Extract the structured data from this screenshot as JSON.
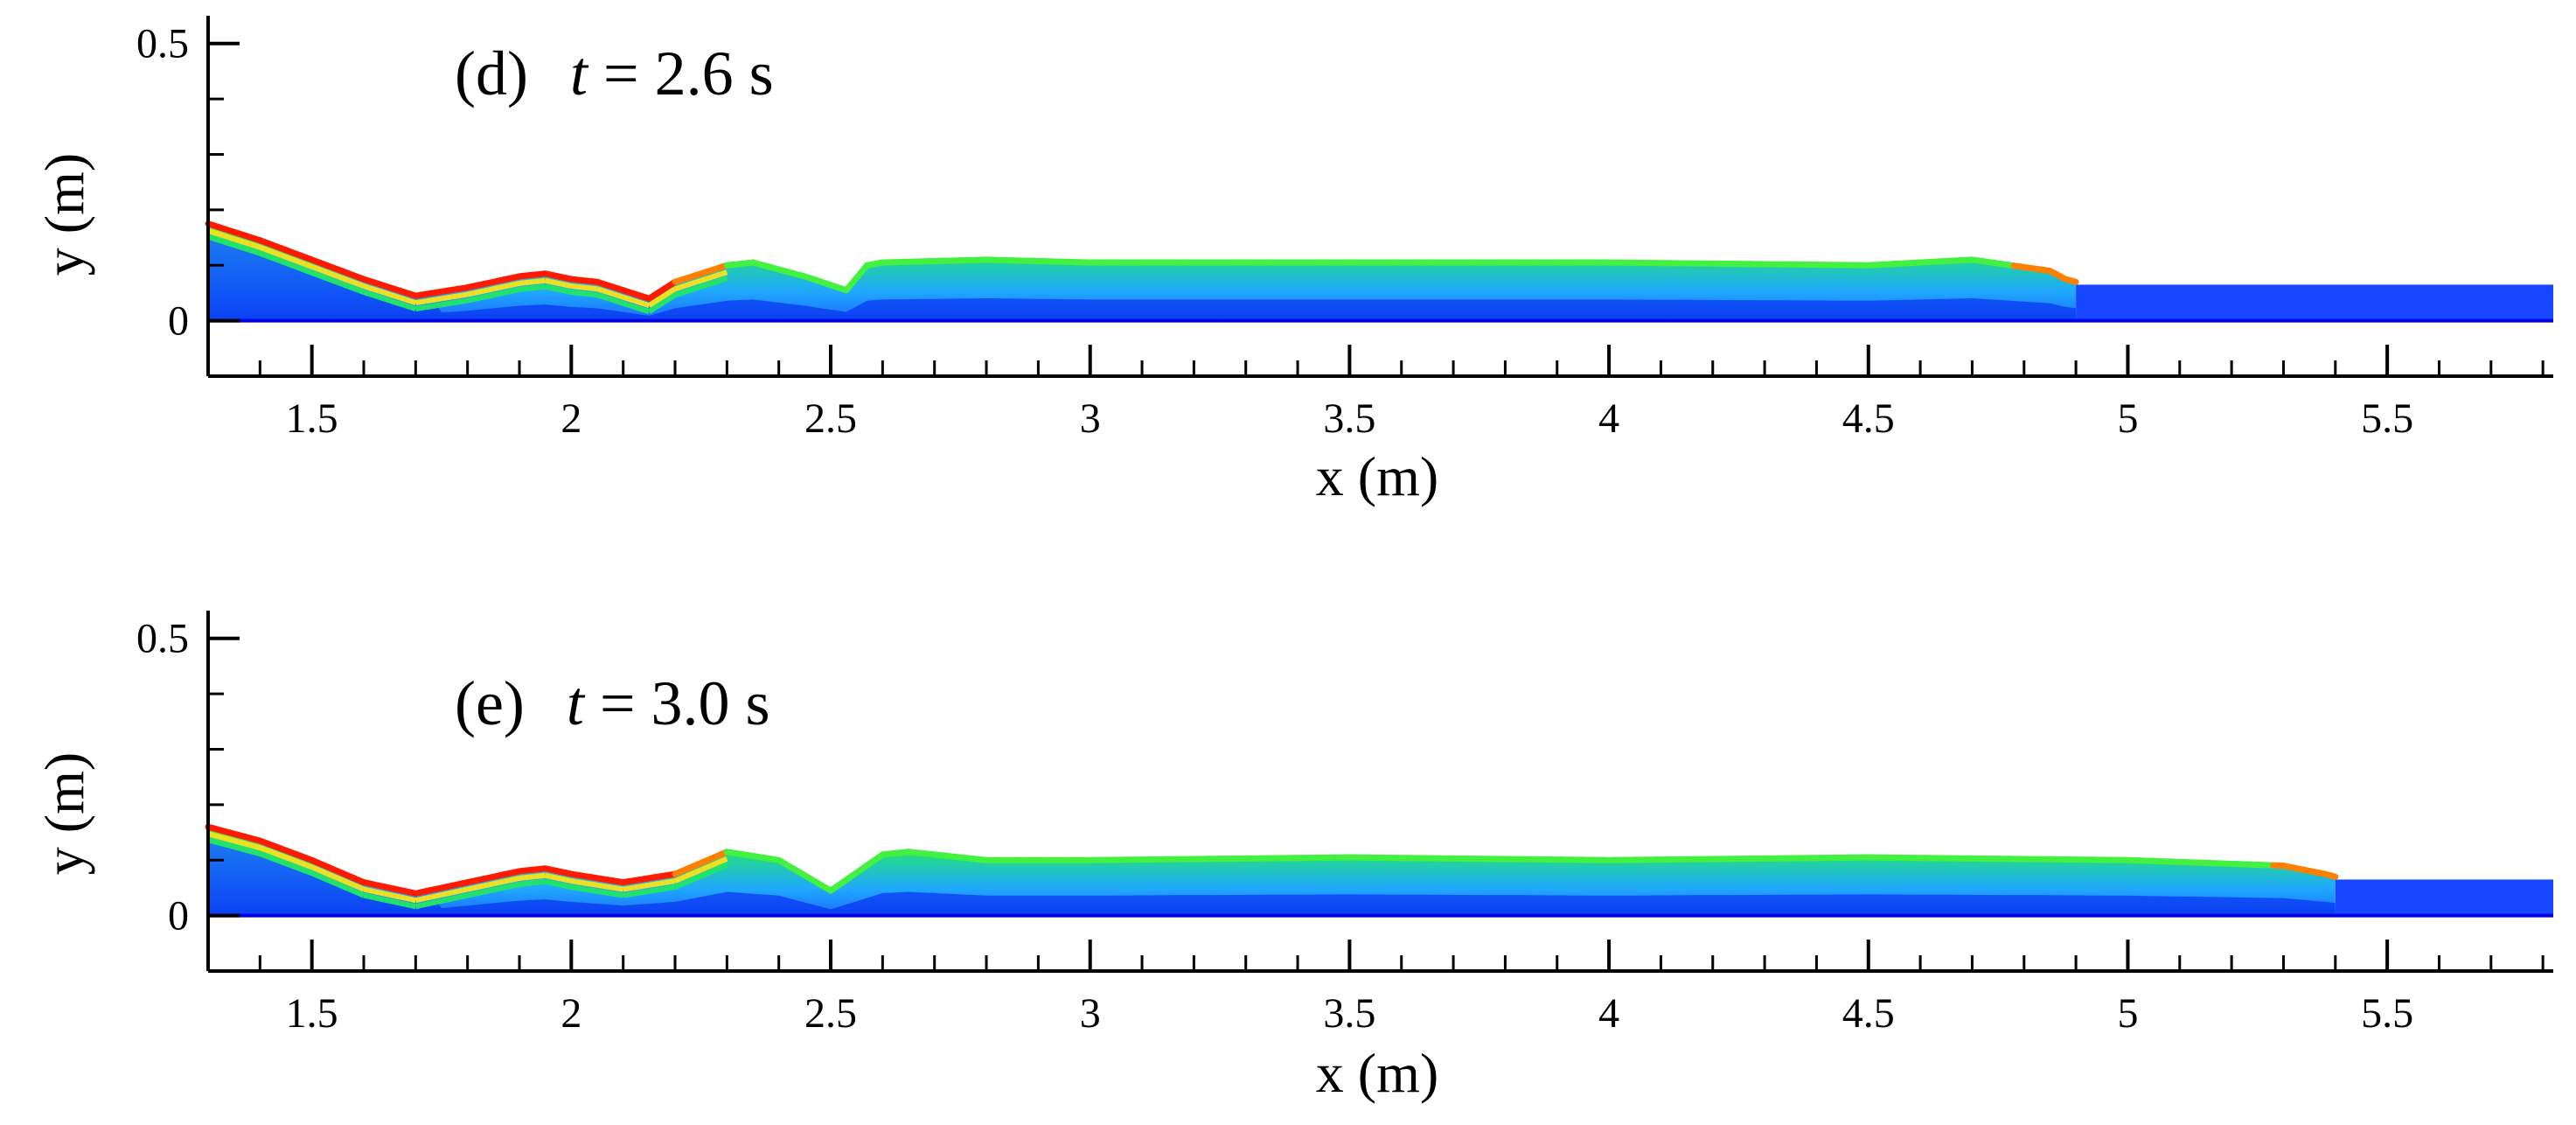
{
  "chart_data": [
    {
      "type": "heatmap",
      "title": "(d)",
      "time_label": "t = 2.6 s",
      "time_var": "t",
      "time_rest": " = 2.6 s",
      "xlabel": "x (m)",
      "ylabel": "y (m)",
      "xlim": [
        1.3,
        5.82
      ],
      "ylim": [
        -0.1,
        0.55
      ],
      "xticks": [
        1.5,
        2,
        2.5,
        3,
        3.5,
        4,
        4.5,
        5,
        5.5
      ],
      "xtick_labels": [
        "1.5",
        "2",
        "2.5",
        "3",
        "3.5",
        "4",
        "4.5",
        "5",
        "5.5"
      ],
      "yticks": [
        0,
        0.5
      ],
      "ytick_labels": [
        "0",
        "0.5"
      ],
      "free_surface": {
        "x": [
          1.3,
          1.4,
          1.5,
          1.6,
          1.7,
          1.8,
          1.9,
          1.95,
          2.0,
          2.05,
          2.1,
          2.15,
          2.2,
          2.3,
          2.35,
          2.45,
          2.53,
          2.57,
          2.6,
          2.8,
          3.0,
          3.5,
          4.0,
          4.5,
          4.7,
          4.85,
          4.88,
          4.92,
          5.82
        ],
        "y": [
          0.175,
          0.145,
          0.11,
          0.075,
          0.045,
          0.06,
          0.08,
          0.085,
          0.075,
          0.07,
          0.055,
          0.04,
          0.07,
          0.1,
          0.105,
          0.08,
          0.055,
          0.1,
          0.105,
          0.11,
          0.105,
          0.105,
          0.105,
          0.1,
          0.11,
          0.09,
          0.075,
          0.065,
          0.065
        ]
      },
      "wave_front_x": 4.9,
      "still_water_depth": 0.065
    },
    {
      "type": "heatmap",
      "title": "(e)",
      "time_label": "t = 3.0 s",
      "time_var": "t",
      "time_rest": " = 3.0 s",
      "xlabel": "x (m)",
      "ylabel": "y (m)",
      "xlim": [
        1.3,
        5.82
      ],
      "ylim": [
        -0.1,
        0.55
      ],
      "xticks": [
        1.5,
        2,
        2.5,
        3,
        3.5,
        4,
        4.5,
        5,
        5.5
      ],
      "xtick_labels": [
        "1.5",
        "2",
        "2.5",
        "3",
        "3.5",
        "4",
        "4.5",
        "5",
        "5.5"
      ],
      "yticks": [
        0,
        0.5
      ],
      "ytick_labels": [
        "0",
        "0.5"
      ],
      "free_surface": {
        "x": [
          1.3,
          1.4,
          1.5,
          1.6,
          1.7,
          1.8,
          1.9,
          1.95,
          2.0,
          2.1,
          2.2,
          2.3,
          2.4,
          2.5,
          2.6,
          2.65,
          2.8,
          3.0,
          3.5,
          4.0,
          4.5,
          5.0,
          5.3,
          5.38,
          5.42,
          5.82
        ],
        "y": [
          0.16,
          0.135,
          0.1,
          0.06,
          0.04,
          0.06,
          0.08,
          0.085,
          0.075,
          0.06,
          0.075,
          0.115,
          0.1,
          0.045,
          0.11,
          0.115,
          0.1,
          0.1,
          0.105,
          0.1,
          0.105,
          0.1,
          0.09,
          0.075,
          0.065,
          0.065
        ]
      },
      "wave_front_x": 5.4,
      "still_water_depth": 0.065
    }
  ],
  "colors": {
    "water_deep": "#0000e8",
    "water_base": "#1a6cff",
    "water_mid": "#00c8f0",
    "water_green": "#22e36a",
    "water_bright": "#44f040",
    "water_yellow": "#f0e020",
    "water_orange": "#ff8000",
    "water_red": "#ff1a00",
    "still_water": "#1646ff"
  }
}
